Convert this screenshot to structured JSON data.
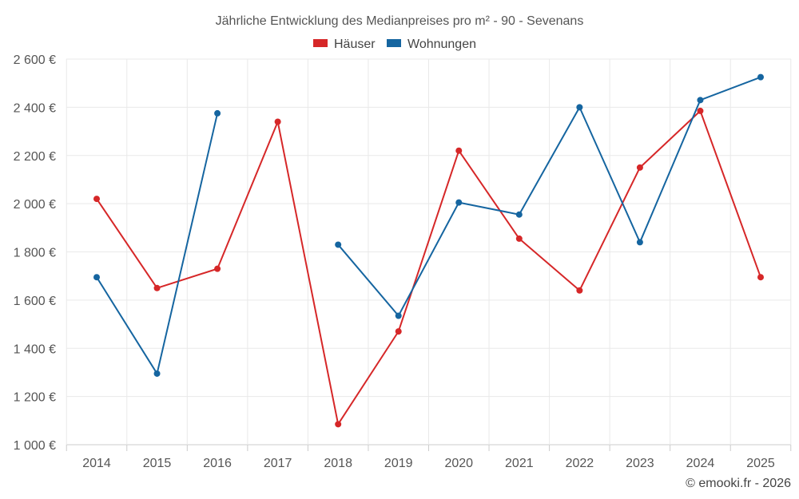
{
  "chart_data": {
    "type": "line",
    "title": "Jährliche Entwicklung des Medianpreises pro m² - 90 - Sevenans",
    "categories": [
      "2014",
      "2015",
      "2016",
      "2017",
      "2018",
      "2019",
      "2020",
      "2021",
      "2022",
      "2023",
      "2024",
      "2025"
    ],
    "ylim": [
      1000,
      2600
    ],
    "yticks": [
      1000,
      1200,
      1400,
      1600,
      1800,
      2000,
      2200,
      2400,
      2600
    ],
    "ytick_labels": [
      "1 000 €",
      "1 200 €",
      "1 400 €",
      "1 600 €",
      "1 800 €",
      "2 000 €",
      "2 200 €",
      "2 400 €",
      "2 600 €"
    ],
    "grid": true,
    "legend_position": "top-center",
    "series": [
      {
        "name": "Häuser",
        "color": "#d62728",
        "values": [
          2020,
          1650,
          1730,
          2340,
          1085,
          1470,
          2220,
          1855,
          1640,
          2150,
          2385,
          1695
        ]
      },
      {
        "name": "Wohnungen",
        "color": "#1565a0",
        "values": [
          1695,
          1295,
          2375,
          null,
          1830,
          1535,
          2005,
          1955,
          2400,
          1840,
          2430,
          2525
        ]
      }
    ],
    "credit": "© emooki.fr - 2026"
  }
}
